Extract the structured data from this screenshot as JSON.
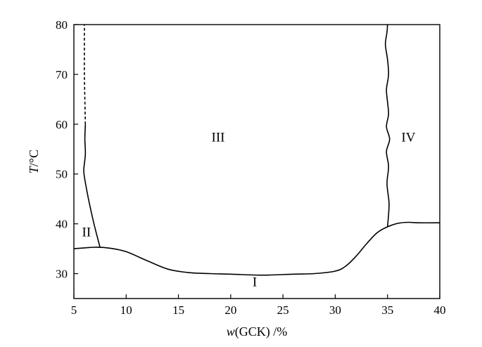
{
  "chart_data": {
    "type": "line",
    "title": "",
    "xlabel": {
      "italic": "w",
      "rest": "(GCK) /%"
    },
    "ylabel": {
      "italic": "T",
      "rest": "/°C"
    },
    "xlim": [
      5,
      40
    ],
    "ylim": [
      25,
      80
    ],
    "xticks": [
      "5",
      "10",
      "15",
      "20",
      "25",
      "30",
      "35",
      "40"
    ],
    "yticks": [
      "30",
      "40",
      "50",
      "60",
      "70",
      "80"
    ],
    "grid": false,
    "series": [
      {
        "style": "solid",
        "x": [
          5,
          7,
          8.5,
          10,
          12,
          14,
          16,
          18,
          20,
          23,
          26,
          28,
          30,
          31,
          32,
          33,
          34,
          35,
          36,
          37,
          38,
          40
        ],
        "y": [
          35.0,
          35.3,
          35.1,
          34.4,
          32.6,
          30.9,
          30.2,
          30.0,
          29.9,
          29.7,
          29.9,
          30.0,
          30.5,
          31.5,
          33.5,
          36.0,
          38.2,
          39.4,
          40.1,
          40.3,
          40.2,
          40.2
        ]
      },
      {
        "style": "solid",
        "x": [
          7.5,
          7.1,
          6.7,
          6.3,
          6.0,
          5.95,
          6.1,
          6.05,
          6.1
        ],
        "y": [
          35.3,
          38.5,
          42.0,
          46.0,
          49.5,
          51.0,
          54.0,
          57.0,
          60.0
        ]
      },
      {
        "style": "dashed",
        "x": [
          6.1,
          6.05,
          6.0,
          6.0,
          6.0
        ],
        "y": [
          60.0,
          65.0,
          70.0,
          75.0,
          80.0
        ]
      },
      {
        "style": "solid",
        "x": [
          35.0,
          35.15,
          34.95,
          35.1,
          34.9,
          35.2,
          34.9,
          35.1,
          35.0,
          34.9,
          35.1,
          35.0,
          34.8,
          34.95,
          35.0
        ],
        "y": [
          39.4,
          44.0,
          48.0,
          51.5,
          54.5,
          57.0,
          59.5,
          62.0,
          64.5,
          67.0,
          70.0,
          73.0,
          76.0,
          78.5,
          80.0
        ]
      }
    ],
    "annotations": [
      {
        "text": "I",
        "x": 22.3,
        "y": 27.5
      },
      {
        "text": "II",
        "x": 6.2,
        "y": 37.5
      },
      {
        "text": "III",
        "x": 18.8,
        "y": 56.5
      },
      {
        "text": "IV",
        "x": 37.0,
        "y": 56.5
      }
    ]
  }
}
